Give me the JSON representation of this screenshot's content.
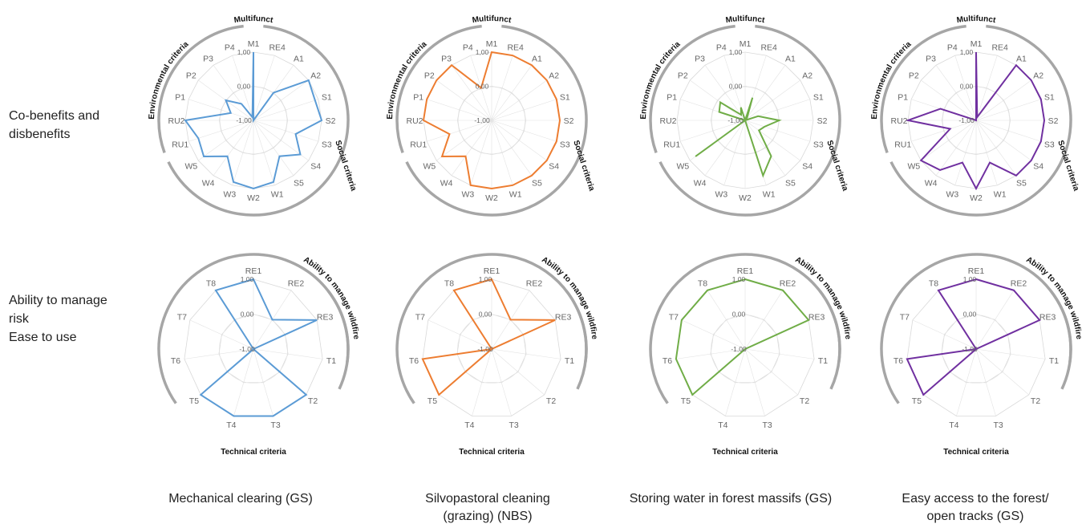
{
  "row_labels": [
    "Co-benefits and\ndisbenefits",
    "Ability to manage\nrisk\nEase to use"
  ],
  "column_labels": [
    "Mechanical clearing (GS)",
    "Silvopastoral cleaning\n(grazing) (NBS)",
    "Storing water in forest massifs (GS)",
    "Easy access to the forest/\nopen tracks (GS)"
  ],
  "tick_labels": [
    "-1,00",
    "0,00",
    "1,00"
  ],
  "arc_labels": {
    "multifunct": "Multifunct",
    "environmental": "Environmental criteria",
    "social": "Social criteria",
    "ability": "Ability to manage wildfire",
    "technical": "Technical criteria"
  },
  "colors": [
    "#5b9bd5",
    "#ed7d31",
    "#70ad47",
    "#7030a0"
  ],
  "chart_data": [
    {
      "type": "radar",
      "group": "co-benefits",
      "column": "Mechanical clearing (GS)",
      "axes": [
        "M1",
        "RE4",
        "A1",
        "A2",
        "S1",
        "S2",
        "S3",
        "S4",
        "S5",
        "W1",
        "W2",
        "W3",
        "W4",
        "W5",
        "RU1",
        "RU2",
        "P1",
        "P2",
        "P3",
        "P4"
      ],
      "values": [
        1,
        -1,
        0,
        1,
        0.9,
        1,
        0.3,
        0.7,
        0.3,
        0.9,
        1,
        0.9,
        0.3,
        0.8,
        0.7,
        1,
        -0.3,
        0,
        -0.4,
        -0.9
      ],
      "ylim": [
        -1,
        1
      ]
    },
    {
      "type": "radar",
      "group": "co-benefits",
      "column": "Silvopastoral cleaning (grazing) (NBS)",
      "axes": [
        "M1",
        "RE4",
        "A1",
        "A2",
        "S1",
        "S2",
        "S3",
        "S4",
        "S5",
        "W1",
        "W2",
        "W3",
        "W4",
        "W5",
        "RU1",
        "RU2",
        "P1",
        "P2",
        "P3",
        "P4"
      ],
      "values": [
        1,
        1,
        1,
        1,
        1,
        1,
        1,
        1,
        1,
        1,
        1,
        1,
        0.3,
        0.8,
        0.3,
        1,
        1,
        1,
        1,
        0
      ],
      "ylim": [
        -1,
        1
      ]
    },
    {
      "type": "radar",
      "group": "co-benefits",
      "column": "Storing water in forest massifs (GS)",
      "axes": [
        "M1",
        "RE4",
        "A1",
        "A2",
        "S1",
        "S2",
        "S3",
        "S4",
        "S5",
        "W1",
        "W2",
        "W3",
        "W4",
        "W5",
        "RU1",
        "RU2",
        "P1",
        "P2",
        "P3",
        "P4"
      ],
      "values": [
        -1,
        -0.3,
        -0.9,
        -1,
        -0.6,
        0,
        -0.4,
        -0.5,
        0.3,
        0.7,
        -1,
        -1,
        -1,
        0.8,
        -1,
        -1,
        -0.2,
        -0.1,
        -0.8,
        -0.6
      ],
      "ylim": [
        -1,
        1
      ]
    },
    {
      "type": "radar",
      "group": "co-benefits",
      "column": "Easy access to the forest/ open tracks (GS)",
      "axes": [
        "M1",
        "RE4",
        "A1",
        "A2",
        "S1",
        "S2",
        "S3",
        "S4",
        "S5",
        "W1",
        "W2",
        "W3",
        "W4",
        "W5",
        "RU1",
        "RU2",
        "P1",
        "P2",
        "P3",
        "P4"
      ],
      "values": [
        1,
        -0.9,
        1,
        1,
        1,
        1,
        1,
        1,
        1,
        0.3,
        1,
        0.3,
        0.8,
        1,
        -0.2,
        1,
        0.1,
        -1,
        -1,
        -1
      ],
      "ylim": [
        -1,
        1
      ]
    },
    {
      "type": "radar",
      "group": "risk-ease",
      "column": "Mechanical clearing (GS)",
      "axes": [
        "RE1",
        "RE2",
        "RE3",
        "T1",
        "T2",
        "T3",
        "T4",
        "T5",
        "T6",
        "T7",
        "T8"
      ],
      "values": [
        1,
        0,
        1,
        -1,
        1,
        1,
        1,
        1,
        -1,
        -1,
        1
      ],
      "ylim": [
        -1,
        1
      ]
    },
    {
      "type": "radar",
      "group": "risk-ease",
      "column": "Silvopastoral cleaning (grazing) (NBS)",
      "axes": [
        "RE1",
        "RE2",
        "RE3",
        "T1",
        "T2",
        "T3",
        "T4",
        "T5",
        "T6",
        "T7",
        "T8"
      ],
      "values": [
        1,
        0,
        1,
        -1,
        -1,
        -1,
        -1,
        1,
        1,
        -1,
        1
      ],
      "ylim": [
        -1,
        1
      ]
    },
    {
      "type": "radar",
      "group": "risk-ease",
      "column": "Storing water in forest massifs (GS)",
      "axes": [
        "RE1",
        "RE2",
        "RE3",
        "T1",
        "T2",
        "T3",
        "T4",
        "T5",
        "T6",
        "T7",
        "T8"
      ],
      "values": [
        1,
        1,
        1,
        -1,
        -1,
        -1,
        -1,
        1,
        1,
        1,
        1
      ],
      "ylim": [
        -1,
        1
      ]
    },
    {
      "type": "radar",
      "group": "risk-ease",
      "column": "Easy access to the forest/ open tracks (GS)",
      "axes": [
        "RE1",
        "RE2",
        "RE3",
        "T1",
        "T2",
        "T3",
        "T4",
        "T5",
        "T6",
        "T7",
        "T8"
      ],
      "values": [
        1,
        1,
        1,
        -1,
        -1,
        -1,
        -1,
        1,
        1,
        -1,
        1
      ],
      "ylim": [
        -1,
        1
      ]
    }
  ]
}
